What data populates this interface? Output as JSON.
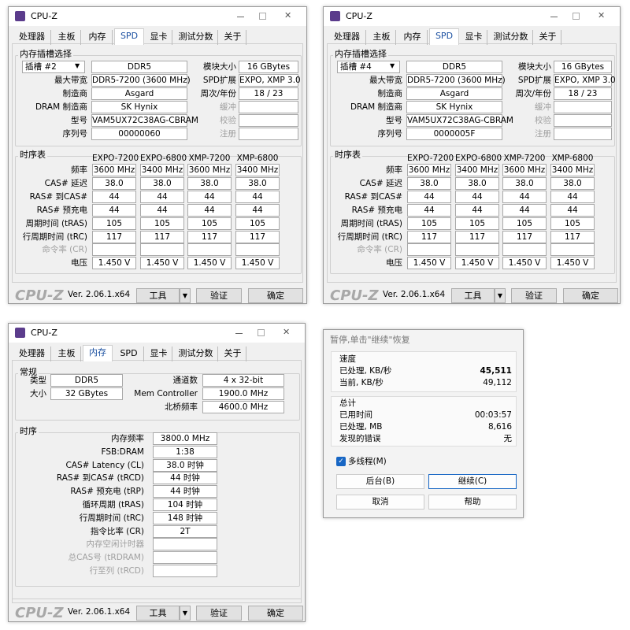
{
  "spd_windows": [
    {
      "title": "CPU-Z",
      "tabs": [
        "处理器",
        "主板",
        "内存",
        "SPD",
        "显卡",
        "测试分数",
        "关于"
      ],
      "active_tab": 3,
      "slot_group": "内存插槽选择",
      "slot": "插槽 #2",
      "left_fields": [
        {
          "value": "DDR5"
        },
        {
          "label": "最大带宽",
          "value": "DDR5-7200 (3600 MHz)"
        },
        {
          "label": "制造商",
          "value": "Asgard"
        },
        {
          "label": "DRAM 制造商",
          "value": "SK Hynix"
        },
        {
          "label": "型号",
          "value": "VAM5UX72C38AG-CBRAM"
        },
        {
          "label": "序列号",
          "value": "00000060"
        }
      ],
      "right_fields": [
        {
          "label": "模块大小",
          "value": "16 GBytes"
        },
        {
          "label": "SPD扩展",
          "value": "EXPO, XMP 3.0"
        },
        {
          "label": "周次/年份",
          "value": "18 / 23"
        },
        {
          "label": "缓冲"
        },
        {
          "label": "校验"
        },
        {
          "label": "注册"
        }
      ],
      "timing_group": "时序表",
      "columns": [
        "EXPO-7200",
        "EXPO-6800",
        "XMP-7200",
        "XMP-6800"
      ],
      "timing_rows": [
        {
          "label": "频率",
          "values": [
            "3600 MHz",
            "3400 MHz",
            "3600 MHz",
            "3400 MHz"
          ]
        },
        {
          "label": "CAS# 延迟",
          "values": [
            "38.0",
            "38.0",
            "38.0",
            "38.0"
          ]
        },
        {
          "label": "RAS# 到CAS#",
          "values": [
            "44",
            "44",
            "44",
            "44"
          ]
        },
        {
          "label": "RAS# 预充电",
          "values": [
            "44",
            "44",
            "44",
            "44"
          ]
        },
        {
          "label": "周期时间 (tRAS)",
          "values": [
            "105",
            "105",
            "105",
            "105"
          ]
        },
        {
          "label": "行周期时间 (tRC)",
          "values": [
            "117",
            "117",
            "117",
            "117"
          ]
        },
        {
          "label": "命令率 (CR)"
        },
        {
          "label": "电压",
          "values": [
            "1.450 V",
            "1.450 V",
            "1.450 V",
            "1.450 V"
          ]
        }
      ],
      "logo": "CPU-Z",
      "version": "Ver. 2.06.1.x64",
      "buttons": [
        "工具",
        "验证",
        "确定"
      ]
    },
    {
      "title": "CPU-Z",
      "tabs": [
        "处理器",
        "主板",
        "内存",
        "SPD",
        "显卡",
        "测试分数",
        "关于"
      ],
      "active_tab": 3,
      "slot_group": "内存插槽选择",
      "slot": "插槽 #4",
      "left_fields": [
        {
          "value": "DDR5"
        },
        {
          "label": "最大带宽",
          "value": "DDR5-7200 (3600 MHz)"
        },
        {
          "label": "制造商",
          "value": "Asgard"
        },
        {
          "label": "DRAM 制造商",
          "value": "SK Hynix"
        },
        {
          "label": "型号",
          "value": "VAM5UX72C38AG-CBRAM"
        },
        {
          "label": "序列号",
          "value": "0000005F"
        }
      ],
      "right_fields": [
        {
          "label": "模块大小",
          "value": "16 GBytes"
        },
        {
          "label": "SPD扩展",
          "value": "EXPO, XMP 3.0"
        },
        {
          "label": "周次/年份",
          "value": "18 / 23"
        },
        {
          "label": "缓冲"
        },
        {
          "label": "校验"
        },
        {
          "label": "注册"
        }
      ],
      "timing_group": "时序表",
      "columns": [
        "EXPO-7200",
        "EXPO-6800",
        "XMP-7200",
        "XMP-6800"
      ],
      "timing_rows": [
        {
          "label": "频率",
          "values": [
            "3600 MHz",
            "3400 MHz",
            "3600 MHz",
            "3400 MHz"
          ]
        },
        {
          "label": "CAS# 延迟",
          "values": [
            "38.0",
            "38.0",
            "38.0",
            "38.0"
          ]
        },
        {
          "label": "RAS# 到CAS#",
          "values": [
            "44",
            "44",
            "44",
            "44"
          ]
        },
        {
          "label": "RAS# 预充电",
          "values": [
            "44",
            "44",
            "44",
            "44"
          ]
        },
        {
          "label": "周期时间 (tRAS)",
          "values": [
            "105",
            "105",
            "105",
            "105"
          ]
        },
        {
          "label": "行周期时间 (tRC)",
          "values": [
            "117",
            "117",
            "117",
            "117"
          ]
        },
        {
          "label": "命令率 (CR)"
        },
        {
          "label": "电压",
          "values": [
            "1.450 V",
            "1.450 V",
            "1.450 V",
            "1.450 V"
          ]
        }
      ],
      "logo": "CPU-Z",
      "version": "Ver. 2.06.1.x64",
      "buttons": [
        "工具",
        "验证",
        "确定"
      ]
    }
  ],
  "memory_window": {
    "title": "CPU-Z",
    "tabs": [
      "处理器",
      "主板",
      "内存",
      "SPD",
      "显卡",
      "测试分数",
      "关于"
    ],
    "active_tab": 2,
    "general_group": "常规",
    "general_left": [
      {
        "label": "类型",
        "value": "DDR5"
      },
      {
        "label": "大小",
        "value": "32 GBytes"
      }
    ],
    "general_right": [
      {
        "label": "通道数",
        "value": "4 x 32-bit"
      },
      {
        "label": "Mem Controller",
        "value": "1900.0 MHz"
      },
      {
        "label": "北桥频率",
        "value": "4600.0 MHz"
      }
    ],
    "timing_group": "时序",
    "timings": [
      {
        "label": "内存频率",
        "value": "3800.0 MHz"
      },
      {
        "label": "FSB:DRAM",
        "value": "1:38"
      },
      {
        "label": "CAS# Latency (CL)",
        "value": "38.0 时钟"
      },
      {
        "label": "RAS# 到CAS# (tRCD)",
        "value": "44 时钟"
      },
      {
        "label": "RAS# 预充电 (tRP)",
        "value": "44 时钟"
      },
      {
        "label": "循环周期 (tRAS)",
        "value": "104 时钟"
      },
      {
        "label": "行周期时间 (tRC)",
        "value": "148 时钟"
      },
      {
        "label": "指令比率 (CR)",
        "value": "2T"
      },
      {
        "label": "内存空闲计时器"
      },
      {
        "label": "总CAS号 (tRDRAM)"
      },
      {
        "label": "行至列 (tRCD)"
      }
    ],
    "logo": "CPU-Z",
    "version": "Ver. 2.06.1.x64",
    "buttons": [
      "工具",
      "验证",
      "确定"
    ]
  },
  "test_window": {
    "title": "暂停,单击\"继续\"恢复",
    "speed_group": "速度",
    "speed_rows": [
      {
        "label": "已处理, KB/秒",
        "value": "45,511"
      },
      {
        "label": "当前, KB/秒",
        "value": "49,112"
      }
    ],
    "total_group": "总计",
    "total_rows": [
      {
        "label": "已用时间",
        "value": "00:03:57"
      },
      {
        "label": "已处理, MB",
        "value": "8,616"
      },
      {
        "label": "发现的错误",
        "value": "无"
      }
    ],
    "checkbox": "多线程(M)",
    "checked": true,
    "buttons": [
      "后台(B)",
      "继续(C)",
      "取消",
      "帮助"
    ]
  }
}
